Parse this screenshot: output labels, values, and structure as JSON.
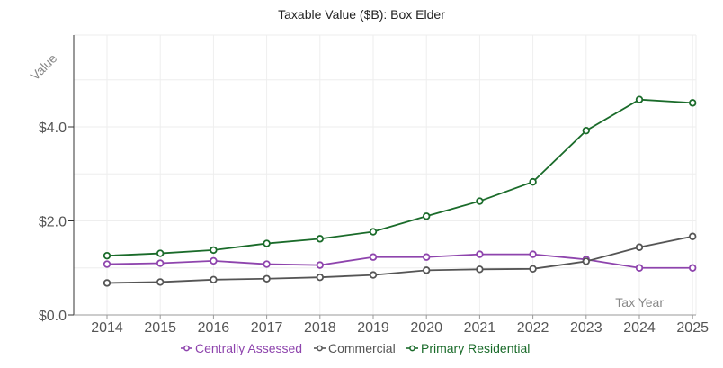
{
  "chart_data": {
    "type": "line",
    "title": "Taxable Value ($B): Box Elder",
    "xlabel": "Tax Year",
    "ylabel": "Value",
    "x": [
      "2014",
      "2015",
      "2016",
      "2017",
      "2018",
      "2019",
      "2020",
      "2021",
      "2022",
      "2023",
      "2024",
      "2025"
    ],
    "ylim": [
      0,
      5.9
    ],
    "yticks": [
      {
        "value": 0,
        "label": "$0.0"
      },
      {
        "value": 2,
        "label": "$2.0"
      },
      {
        "value": 4,
        "label": "$4.0"
      }
    ],
    "grid": true,
    "legend_position": "bottom",
    "series": [
      {
        "name": "Centrally Assessed",
        "color": "#8e44ad",
        "values": [
          1.08,
          1.1,
          1.15,
          1.08,
          1.06,
          1.23,
          1.23,
          1.29,
          1.29,
          1.18,
          1.0,
          1.0
        ]
      },
      {
        "name": "Commercial",
        "color": "#555555",
        "values": [
          0.68,
          0.7,
          0.75,
          0.77,
          0.8,
          0.85,
          0.95,
          0.97,
          0.98,
          1.14,
          1.44,
          1.67
        ]
      },
      {
        "name": "Primary Residential",
        "color": "#1a6b2a",
        "values": [
          1.26,
          1.31,
          1.38,
          1.52,
          1.62,
          1.77,
          2.1,
          2.42,
          2.83,
          3.92,
          4.58,
          4.51
        ]
      }
    ]
  }
}
